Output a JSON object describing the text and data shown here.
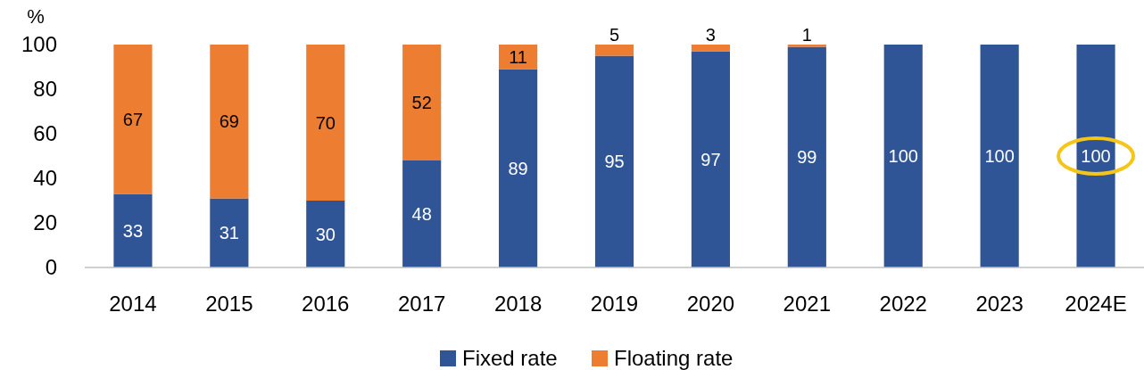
{
  "chart_data": {
    "type": "bar",
    "stacked": true,
    "ylabel": "%",
    "categories": [
      "2014",
      "2015",
      "2016",
      "2017",
      "2018",
      "2019",
      "2020",
      "2021",
      "2022",
      "2023",
      "2024E"
    ],
    "series": [
      {
        "name": "Fixed rate",
        "color": "#2f5597",
        "values": [
          33,
          31,
          30,
          48,
          89,
          95,
          97,
          99,
          100,
          100,
          100
        ],
        "value_labels": [
          "33",
          "31",
          "30",
          "48",
          "89",
          "95",
          "97",
          "99",
          "100",
          "100",
          "100"
        ]
      },
      {
        "name": "Floating rate",
        "color": "#ed7d31",
        "values": [
          67,
          69,
          70,
          52,
          11,
          5,
          3,
          1,
          0,
          0,
          0
        ],
        "value_labels": [
          "67",
          "69",
          "70",
          "52",
          "11",
          "5",
          "3",
          "1",
          null,
          null,
          null
        ]
      }
    ],
    "ylim": [
      0,
      100
    ],
    "yticks": [
      0,
      20,
      40,
      60,
      80,
      100
    ],
    "grid": false,
    "legend": "bottom"
  }
}
